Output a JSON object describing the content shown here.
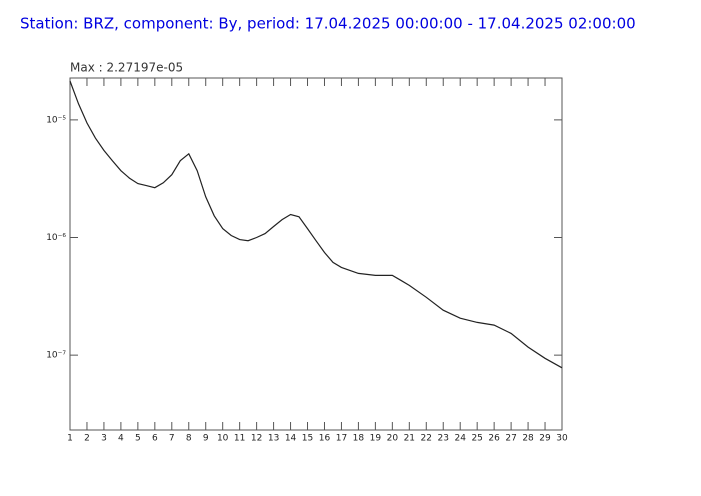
{
  "chart_data": {
    "type": "line",
    "title": "Station: BRZ, component: By, period: 17.04.2025 00:00:00 - 17.04.2025 02:00:00",
    "annotation": "Max : 2.27197e-05",
    "log_y": true,
    "grid": false,
    "xlim": [
      1,
      30
    ],
    "ylim": [
      2.31e-08,
      2.27e-05
    ],
    "xticks": [
      1,
      2,
      3,
      4,
      5,
      6,
      7,
      8,
      9,
      10,
      11,
      12,
      13,
      14,
      15,
      16,
      17,
      18,
      19,
      20,
      21,
      22,
      23,
      24,
      25,
      26,
      27,
      28,
      29,
      30
    ],
    "yticks": [
      {
        "value": 1e-07,
        "label": "10⁻⁷"
      },
      {
        "value": 1e-06,
        "label": "10⁻⁶"
      },
      {
        "value": 1e-05,
        "label": "10⁻⁵"
      }
    ],
    "x": [
      1,
      1.5,
      2,
      2.5,
      3,
      3.5,
      4,
      4.5,
      5,
      5.5,
      6,
      6.5,
      7,
      7.5,
      8,
      8.5,
      9,
      9.5,
      10,
      10.5,
      11,
      11.5,
      12,
      12.5,
      13,
      13.5,
      14,
      14.5,
      15,
      15.5,
      16,
      16.5,
      17,
      17.5,
      18,
      19,
      20,
      20.5,
      21,
      22,
      23,
      24,
      25,
      26,
      27,
      28,
      29,
      30
    ],
    "series": [
      {
        "color": "#222222",
        "values": [
          2.14e-05,
          1.37e-05,
          9.4e-06,
          7e-06,
          5.5e-06,
          4.5e-06,
          3.7e-06,
          3.2e-06,
          2.87e-06,
          2.76e-06,
          2.65e-06,
          2.92e-06,
          3.42e-06,
          4.5e-06,
          5.15e-06,
          3.7e-06,
          2.22e-06,
          1.53e-06,
          1.19e-06,
          1.04e-06,
          9.6e-07,
          9.4e-07,
          1e-06,
          1.08e-06,
          1.24e-06,
          1.42e-06,
          1.57e-06,
          1.5e-06,
          1.19e-06,
          9.4e-07,
          7.46e-07,
          6.14e-07,
          5.57e-07,
          5.25e-07,
          4.95e-07,
          4.76e-07,
          4.76e-07,
          4.33e-07,
          3.92e-07,
          3.1e-07,
          2.41e-07,
          2.06e-07,
          1.9e-07,
          1.8e-07,
          1.53e-07,
          1.17e-07,
          9.4e-08,
          7.8e-08
        ]
      }
    ]
  }
}
